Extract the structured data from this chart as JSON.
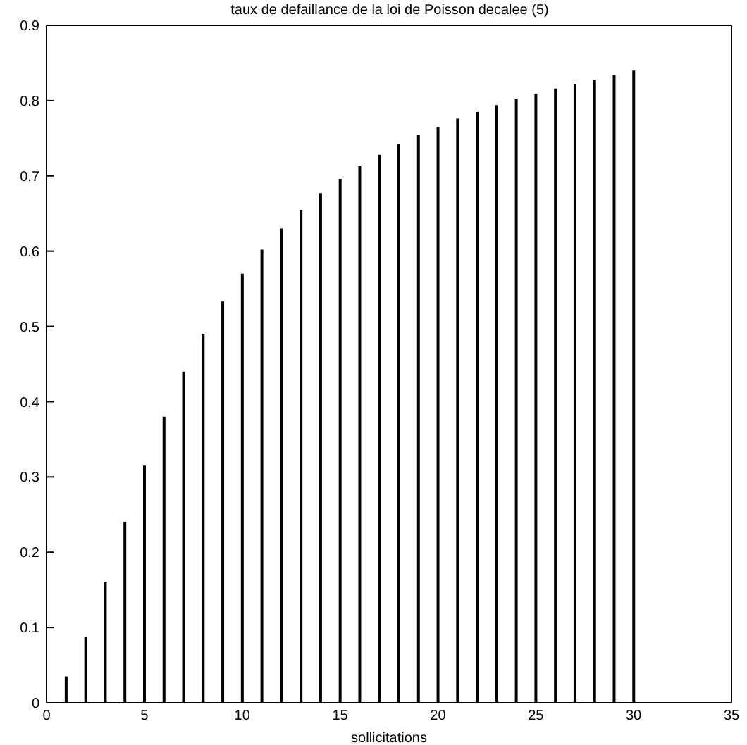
{
  "chart_data": {
    "type": "bar",
    "title": "taux de defaillance de la loi de Poisson decalee (5)",
    "xlabel": "sollicitations",
    "x": [
      1,
      2,
      3,
      4,
      5,
      6,
      7,
      8,
      9,
      10,
      11,
      12,
      13,
      14,
      15,
      16,
      17,
      18,
      19,
      20,
      21,
      22,
      23,
      24,
      25,
      26,
      27,
      28,
      29,
      30
    ],
    "values": [
      0.035,
      0.088,
      0.16,
      0.24,
      0.315,
      0.38,
      0.44,
      0.49,
      0.533,
      0.57,
      0.602,
      0.63,
      0.655,
      0.677,
      0.696,
      0.713,
      0.728,
      0.742,
      0.754,
      0.765,
      0.776,
      0.785,
      0.794,
      0.802,
      0.809,
      0.816,
      0.822,
      0.828,
      0.834,
      0.84
    ],
    "color": "#000000",
    "xlim": [
      0,
      35
    ],
    "xticks": [
      0,
      5,
      10,
      15,
      20,
      25,
      30,
      35
    ],
    "ylim": [
      0,
      0.9
    ],
    "yticks": [
      0,
      0.1,
      0.2,
      0.3,
      0.4,
      0.5,
      0.6,
      0.7,
      0.8,
      0.9
    ],
    "grid": false
  }
}
